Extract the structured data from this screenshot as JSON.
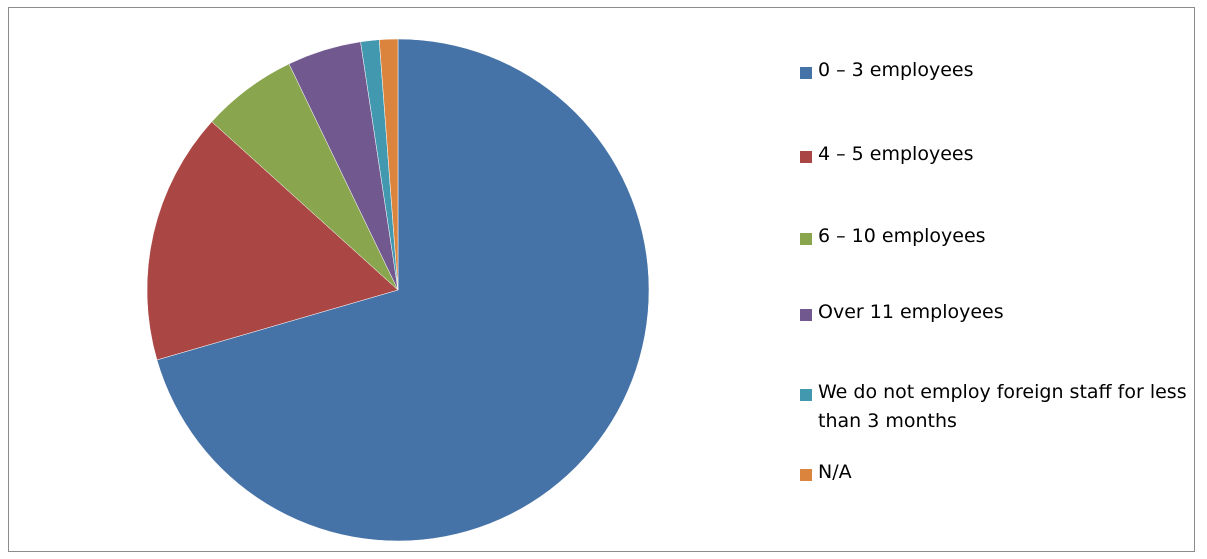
{
  "chart_data": {
    "type": "pie",
    "categories": [
      "0 – 3 employees",
      "4 – 5 employees",
      "6 – 10 employees",
      "Over 11 employees",
      "We do not employ foreign staff for less than 3 months",
      "N/A"
    ],
    "values": [
      71.0,
      16.3,
      6.2,
      4.8,
      1.2,
      1.2
    ],
    "colors": [
      "#4572a7",
      "#aa4643",
      "#89a54e",
      "#71588f",
      "#4198af",
      "#db843d"
    ],
    "start_angle": "12 o'clock",
    "direction": "clockwise",
    "legend_position": "right"
  }
}
